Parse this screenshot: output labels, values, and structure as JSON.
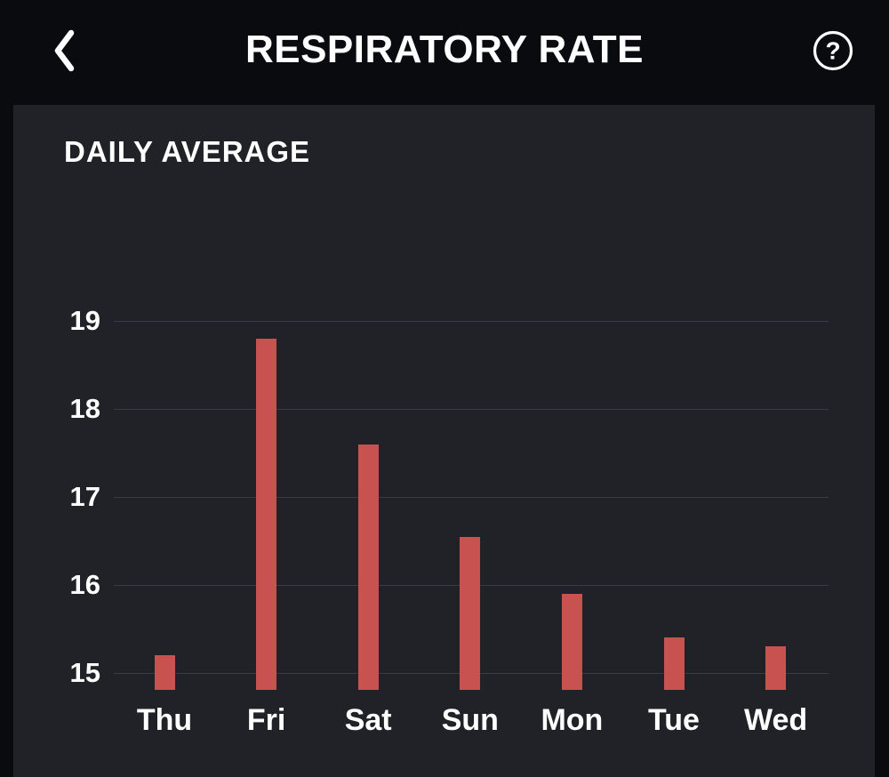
{
  "header": {
    "title": "RESPIRATORY RATE",
    "back_icon": "chevron-left",
    "help_icon": "question-mark-circle",
    "help_glyph": "?"
  },
  "colors": {
    "page_background": "#0a0b0e",
    "card_background": "#202227",
    "bar": "#c75250",
    "gridline": "#383b41",
    "text": "#ffffff"
  },
  "chart_data": {
    "type": "bar",
    "title": "DAILY AVERAGE",
    "categories": [
      "Thu",
      "Fri",
      "Sat",
      "Sun",
      "Mon",
      "Tue",
      "Wed"
    ],
    "values": [
      15.2,
      18.8,
      17.6,
      16.55,
      15.9,
      15.4,
      15.3
    ],
    "xlabel": "",
    "ylabel": "",
    "yticks": [
      15,
      16,
      17,
      18,
      19
    ],
    "ylim": [
      14.8,
      19.4
    ],
    "grid": true,
    "legend": false
  }
}
